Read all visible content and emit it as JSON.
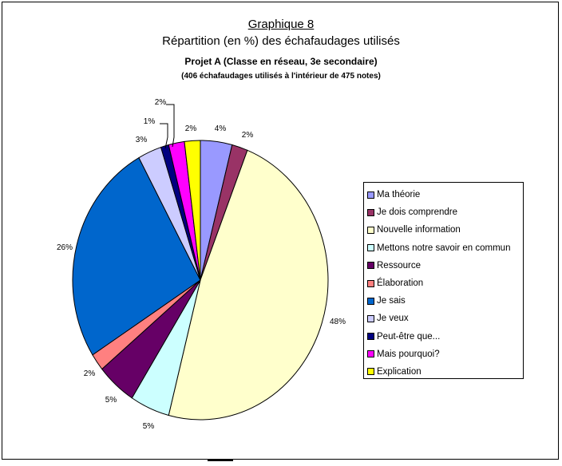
{
  "chart_data": {
    "type": "pie",
    "title": "Graphique 8",
    "subtitle": "Répartition (en %) des échafaudages utilisés",
    "subtitle2": "Projet A (Classe en réseau, 3e secondaire)",
    "subtitle3": "(406 échafaudages utilisés à l'intérieur de 475 notes)",
    "legend_position": "right",
    "slices": [
      {
        "label": "Ma théorie",
        "value": 4,
        "value_label": "4%",
        "color": "#9999ff"
      },
      {
        "label": "Je dois comprendre",
        "value": 2,
        "value_label": "2%",
        "color": "#993366"
      },
      {
        "label": "Nouvelle information",
        "value": 48,
        "value_label": "48%",
        "color": "#ffffcc"
      },
      {
        "label": "Mettons notre savoir en commun",
        "value": 5,
        "value_label": "5%",
        "color": "#ccffff"
      },
      {
        "label": "Ressource",
        "value": 5,
        "value_label": "5%",
        "color": "#660066"
      },
      {
        "label": "Élaboration",
        "value": 2,
        "value_label": "2%",
        "color": "#ff8080"
      },
      {
        "label": "Je sais",
        "value": 26,
        "value_label": "26%",
        "color": "#0066cc"
      },
      {
        "label": "Je veux",
        "value": 3,
        "value_label": "3%",
        "color": "#ccccff"
      },
      {
        "label": "Peut-être que...",
        "value": 1,
        "value_label": "1%",
        "color": "#000080"
      },
      {
        "label": "Mais pourquoi?",
        "value": 2,
        "value_label": "2%",
        "color": "#ff00ff"
      },
      {
        "label": "Explication",
        "value": 2,
        "value_label": "2%",
        "color": "#ffff00"
      }
    ]
  }
}
